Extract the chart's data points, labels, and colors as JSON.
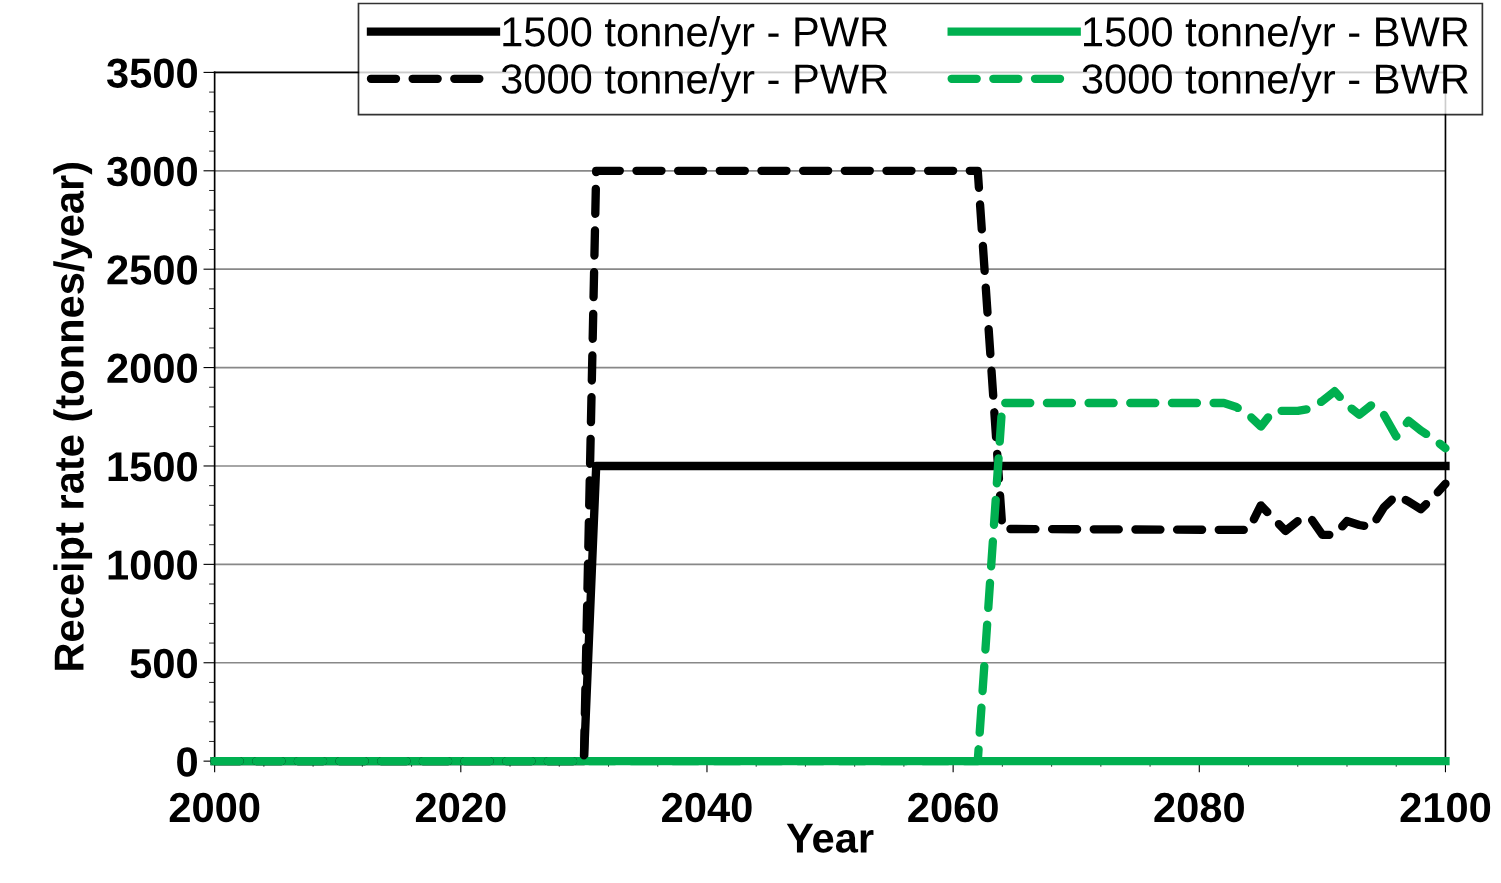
{
  "chart_data": {
    "type": "line",
    "xlabel": "Year",
    "ylabel": "Receipt rate (tonnes/year)",
    "xlim": [
      2000,
      2100
    ],
    "xticks": [
      2000,
      2020,
      2040,
      2060,
      2080,
      2100
    ],
    "ylim": [
      0,
      3500
    ],
    "yticks": [
      0,
      500,
      1000,
      1500,
      2000,
      2500,
      3000,
      3500
    ],
    "grid": "y",
    "legend": "top right",
    "marker": "none",
    "series": [
      {
        "name": "1500 tonne/yr - PWR",
        "color": "#000000",
        "line_style": "solid",
        "x": [
          2000,
          2030,
          2031,
          2100
        ],
        "values": [
          0,
          0,
          1500,
          1500
        ]
      },
      {
        "name": "1500 tonne/yr - BWR",
        "color": "#00b050",
        "line_style": "solid",
        "x": [
          2000,
          2100
        ],
        "values": [
          0,
          0
        ]
      },
      {
        "name": "3000 tonne/yr - PWR",
        "color": "#000000",
        "line_style": "dashed",
        "x": [
          2000,
          2030,
          2031,
          2062,
          2064,
          2084,
          2085,
          2087,
          2088,
          2089,
          2090,
          2091,
          2092,
          2093,
          2094,
          2095,
          2096,
          2097,
          2098,
          2099,
          2100
        ],
        "values": [
          0,
          0,
          3000,
          3000,
          1180,
          1175,
          1300,
          1170,
          1220,
          1240,
          1150,
          1150,
          1220,
          1200,
          1190,
          1290,
          1350,
          1320,
          1280,
          1340,
          1410
        ]
      },
      {
        "name": "3000 tonne/yr - BWR",
        "color": "#00b050",
        "line_style": "dashed",
        "x": [
          2000,
          2062,
          2064,
          2082,
          2083,
          2084,
          2085,
          2086,
          2088,
          2089,
          2090,
          2091,
          2092,
          2093,
          2094,
          2095,
          2096,
          2097,
          2098,
          2099,
          2100
        ],
        "values": [
          0,
          0,
          1820,
          1820,
          1800,
          1760,
          1700,
          1780,
          1780,
          1790,
          1830,
          1880,
          1810,
          1760,
          1810,
          1760,
          1650,
          1730,
          1680,
          1640,
          1590
        ]
      }
    ]
  }
}
